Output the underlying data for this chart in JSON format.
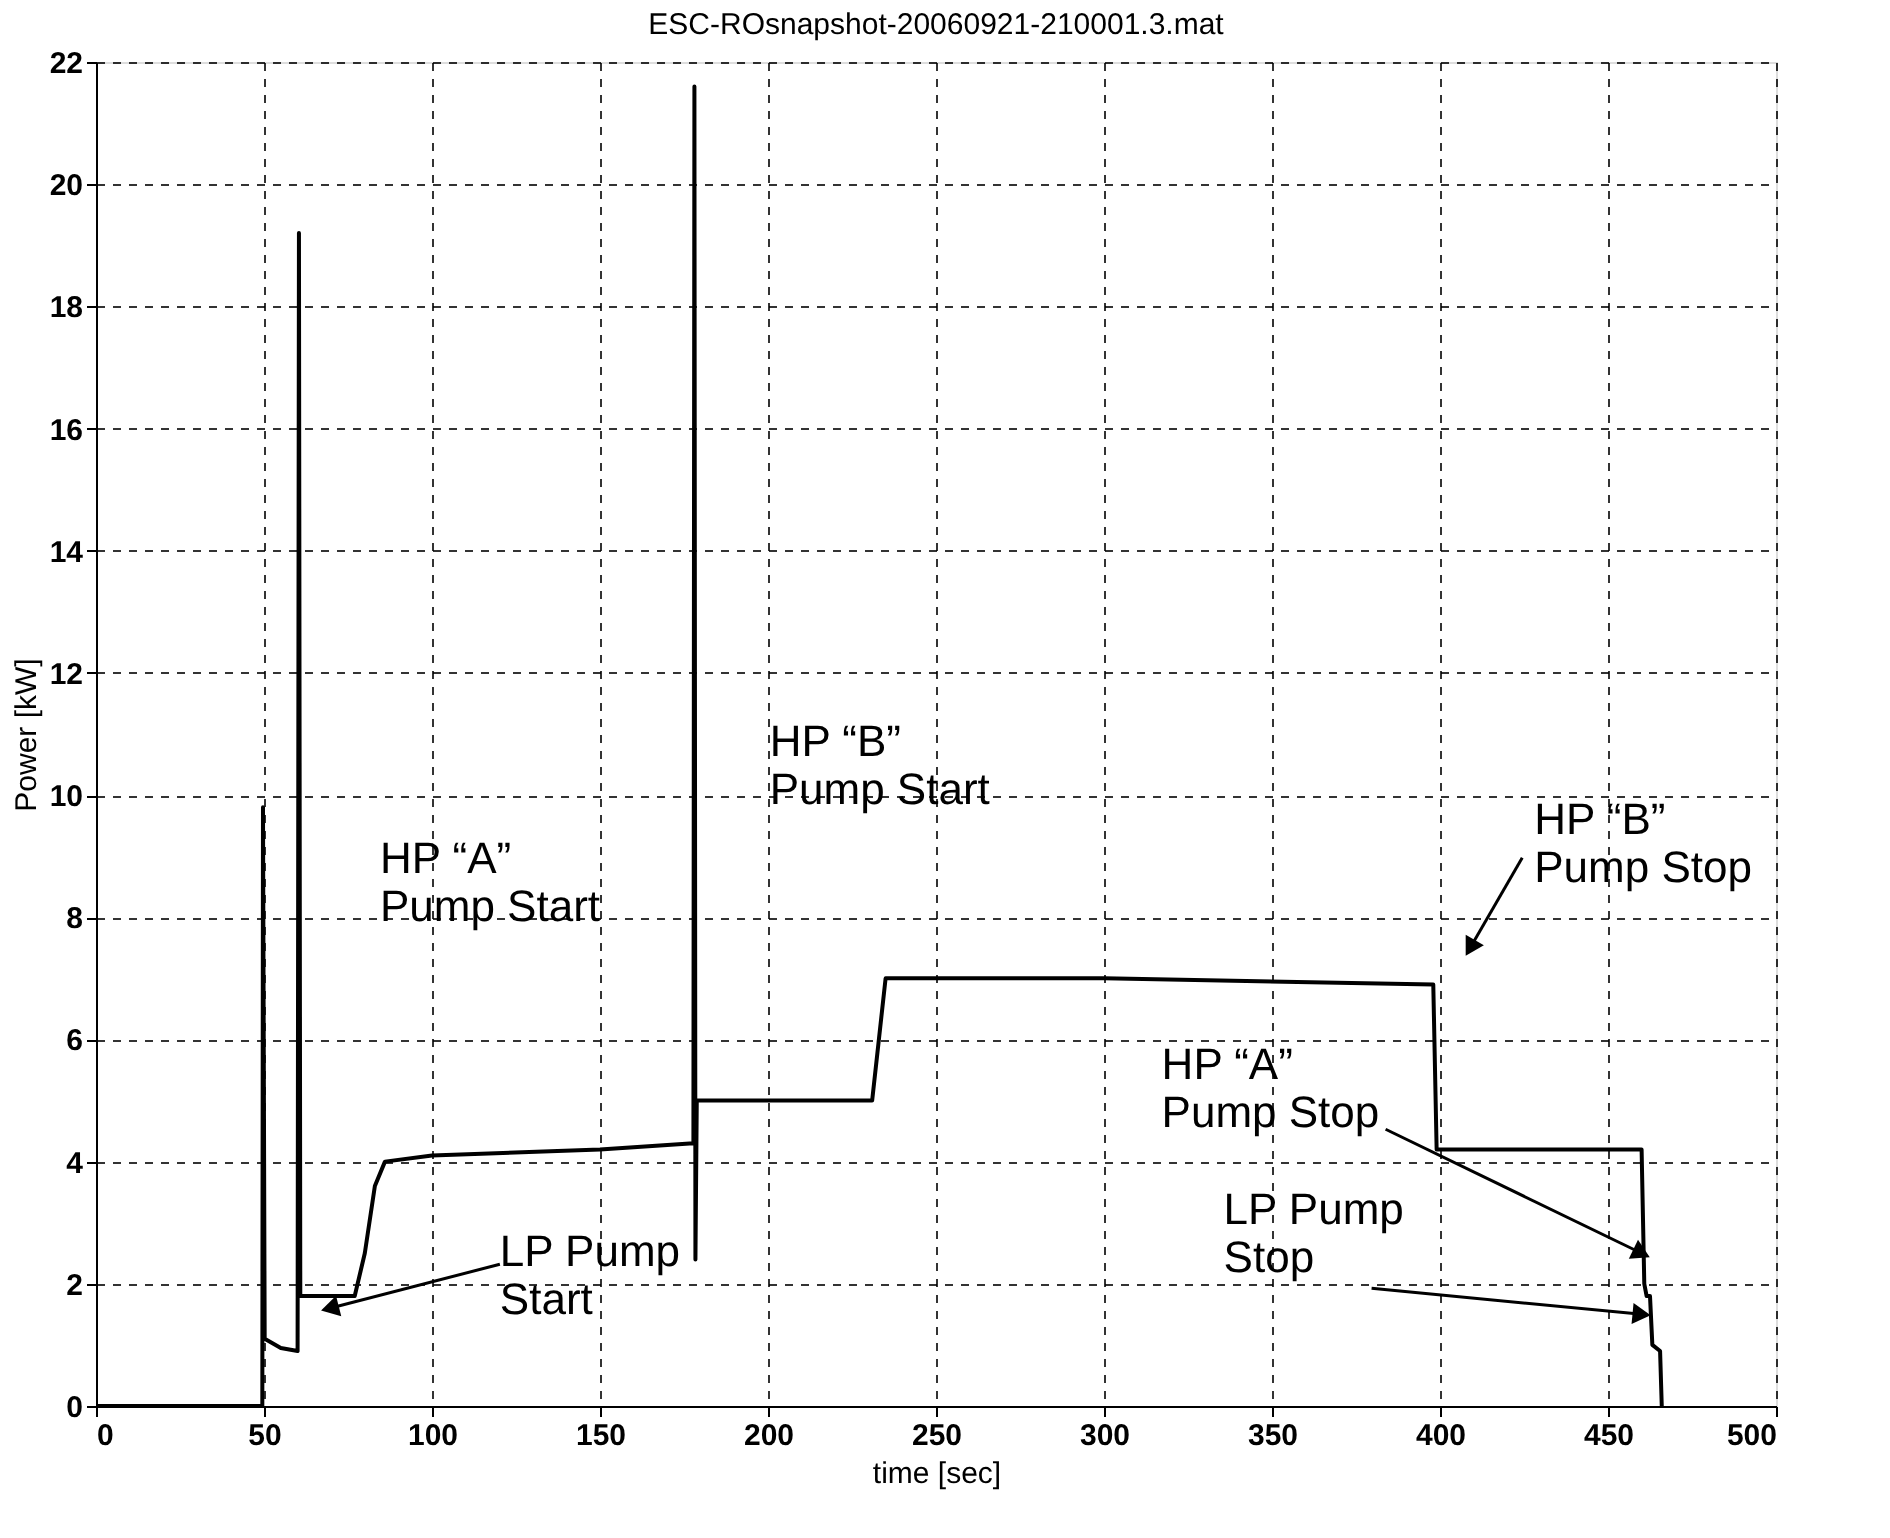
{
  "chart_data": {
    "type": "line",
    "title": "ESC-ROsnapshot-20060921-210001.3.mat",
    "xlabel": "time [sec]",
    "ylabel": "Power [kW]",
    "xlim": [
      0,
      500
    ],
    "xticks": [
      0,
      50,
      100,
      150,
      200,
      250,
      300,
      350,
      400,
      450,
      500
    ],
    "ylim": [
      0,
      22
    ],
    "yticks": [
      0,
      2,
      4,
      6,
      8,
      10,
      12,
      14,
      16,
      18,
      20,
      22
    ],
    "grid": true,
    "line_style": "solid",
    "marker": "none",
    "x": [
      0,
      49.5,
      49.7,
      50.2,
      55,
      60,
      60.4,
      60.8,
      70,
      77,
      80,
      83,
      86,
      100,
      150,
      177.8,
      178.1,
      178.4,
      178.8,
      200,
      231,
      233,
      235,
      300,
      398,
      399,
      430,
      460,
      460.8,
      461.5,
      462.5,
      463.2,
      465.5,
      466
    ],
    "series": [
      {
        "color": "#000000",
        "values": [
          0,
          0,
          9.8,
          1.1,
          0.95,
          0.9,
          19.2,
          1.8,
          1.8,
          1.8,
          2.5,
          3.6,
          4.0,
          4.1,
          4.2,
          4.3,
          21.6,
          2.4,
          5.0,
          5.0,
          5.0,
          6.0,
          7.0,
          7.0,
          6.9,
          4.2,
          4.2,
          4.2,
          2.0,
          1.8,
          1.8,
          1.0,
          0.9,
          0
        ]
      }
    ],
    "annotations": [
      {
        "text": "LP Pump\nStart",
        "x": 69.6,
        "y": 1.6
      },
      "HP “A”\nPump Start",
      "HP “B”\nPump Start",
      {
        "text": "HP “B”\nPump Stop",
        "x": 409,
        "y": 7.5
      },
      {
        "text": "HP “A”\nPump Stop",
        "x": 460,
        "y": 2.5
      },
      {
        "text": "LP Pump\nStop",
        "x": 460,
        "y": 1.5
      }
    ]
  }
}
